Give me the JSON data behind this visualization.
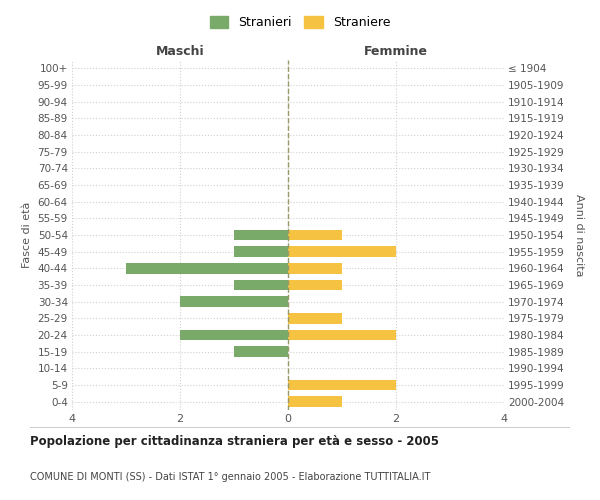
{
  "age_groups": [
    "0-4",
    "5-9",
    "10-14",
    "15-19",
    "20-24",
    "25-29",
    "30-34",
    "35-39",
    "40-44",
    "45-49",
    "50-54",
    "55-59",
    "60-64",
    "65-69",
    "70-74",
    "75-79",
    "80-84",
    "85-89",
    "90-94",
    "95-99",
    "100+"
  ],
  "birth_years": [
    "2000-2004",
    "1995-1999",
    "1990-1994",
    "1985-1989",
    "1980-1984",
    "1975-1979",
    "1970-1974",
    "1965-1969",
    "1960-1964",
    "1955-1959",
    "1950-1954",
    "1945-1949",
    "1940-1944",
    "1935-1939",
    "1930-1934",
    "1925-1929",
    "1920-1924",
    "1915-1919",
    "1910-1914",
    "1905-1909",
    "≤ 1904"
  ],
  "males": [
    0,
    0,
    0,
    1,
    2,
    0,
    2,
    1,
    3,
    1,
    1,
    0,
    0,
    0,
    0,
    0,
    0,
    0,
    0,
    0,
    0
  ],
  "females": [
    1,
    2,
    0,
    0,
    2,
    1,
    0,
    1,
    1,
    2,
    1,
    0,
    0,
    0,
    0,
    0,
    0,
    0,
    0,
    0,
    0
  ],
  "male_color": "#7aaa6a",
  "female_color": "#f5c242",
  "title": "Popolazione per cittadinanza straniera per età e sesso - 2005",
  "subtitle": "COMUNE DI MONTI (SS) - Dati ISTAT 1° gennaio 2005 - Elaborazione TUTTITALIA.IT",
  "xlabel_left": "Maschi",
  "xlabel_right": "Femmine",
  "ylabel_left": "Fasce di età",
  "ylabel_right": "Anni di nascita",
  "legend_male": "Stranieri",
  "legend_female": "Straniere",
  "xlim": 4,
  "background_color": "#ffffff",
  "grid_color": "#d0d0d0",
  "dashed_line_color": "#aaaaaa"
}
